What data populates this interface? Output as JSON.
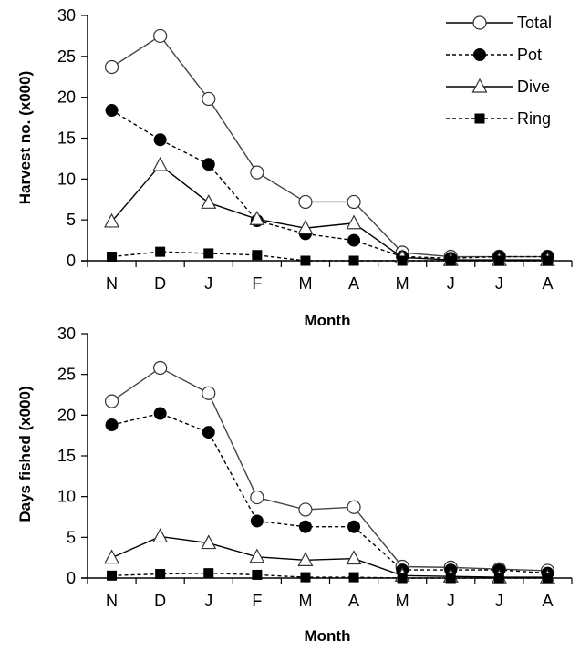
{
  "chart_data": [
    {
      "type": "line",
      "title": "",
      "xlabel": "Month",
      "ylabel": "Harvest no. (x000)",
      "ylim": [
        0,
        30
      ],
      "yticks": [
        0,
        5,
        10,
        15,
        20,
        25,
        30
      ],
      "categories": [
        "N",
        "D",
        "J",
        "F",
        "M",
        "A",
        "M",
        "J",
        "J",
        "A"
      ],
      "grid": false,
      "legend_position": "top-right",
      "series": [
        {
          "name": "Total",
          "values": [
            23.7,
            27.5,
            19.8,
            10.8,
            7.2,
            7.2,
            1.0,
            0.5,
            0.5,
            0.5
          ],
          "marker": "circle-open",
          "dash": "solid"
        },
        {
          "name": "Pot",
          "values": [
            18.4,
            14.8,
            11.8,
            4.9,
            3.3,
            2.5,
            0.5,
            0.3,
            0.5,
            0.5
          ],
          "marker": "circle-filled",
          "dash": "dashed"
        },
        {
          "name": "Dive",
          "values": [
            4.8,
            11.7,
            7.1,
            5.1,
            4.0,
            4.6,
            0.4,
            0.1,
            0.1,
            0.1
          ],
          "marker": "triangle-open",
          "dash": "solid"
        },
        {
          "name": "Ring",
          "values": [
            0.5,
            1.1,
            0.9,
            0.7,
            0.0,
            0.0,
            0.0,
            0.0,
            0.0,
            0.0
          ],
          "marker": "square-filled",
          "dash": "dashed"
        }
      ]
    },
    {
      "type": "line",
      "title": "",
      "xlabel": "Month",
      "ylabel": "Days fished (x000)",
      "ylim": [
        0,
        30
      ],
      "yticks": [
        0,
        5,
        10,
        15,
        20,
        25,
        30
      ],
      "categories": [
        "N",
        "D",
        "J",
        "F",
        "M",
        "A",
        "M",
        "J",
        "J",
        "A"
      ],
      "grid": false,
      "series": [
        {
          "name": "Total",
          "values": [
            21.7,
            25.8,
            22.7,
            9.9,
            8.4,
            8.7,
            1.4,
            1.3,
            1.1,
            0.9
          ],
          "marker": "circle-open",
          "dash": "solid"
        },
        {
          "name": "Pot",
          "values": [
            18.8,
            20.2,
            17.9,
            7.0,
            6.3,
            6.3,
            1.0,
            1.0,
            1.0,
            0.6
          ],
          "marker": "circle-filled",
          "dash": "dashed"
        },
        {
          "name": "Dive",
          "values": [
            2.5,
            5.1,
            4.3,
            2.6,
            2.2,
            2.4,
            0.3,
            0.2,
            0.1,
            0.1
          ],
          "marker": "triangle-open",
          "dash": "solid"
        },
        {
          "name": "Ring",
          "values": [
            0.3,
            0.5,
            0.6,
            0.4,
            0.1,
            0.1,
            0.0,
            0.0,
            0.0,
            0.0
          ],
          "marker": "square-filled",
          "dash": "dashed"
        }
      ]
    }
  ]
}
